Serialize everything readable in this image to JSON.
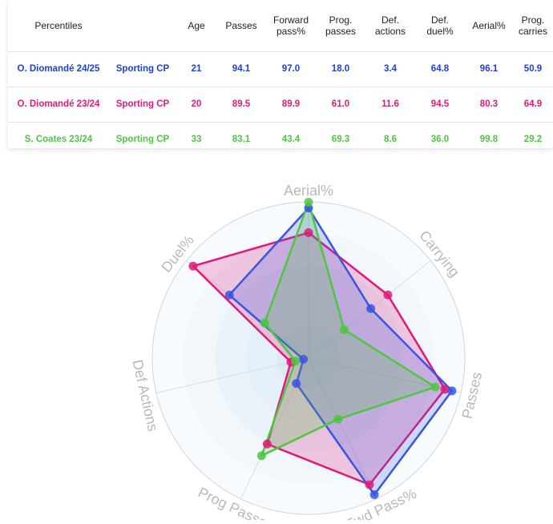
{
  "table": {
    "headers": [
      "Percentiles",
      "",
      "Age",
      "Passes",
      "Forward pass%",
      "Prog. passes",
      "Def. actions",
      "Def. duel%",
      "Aerial%",
      "Prog. carries"
    ],
    "rows": [
      {
        "player": "O. Diomandé 24/25",
        "team": "Sporting CP",
        "color": "#1f3fcf",
        "values": [
          "21",
          "94.1",
          "97.0",
          "18.0",
          "3.4",
          "64.8",
          "96.1",
          "50.9"
        ]
      },
      {
        "player": "O. Diomandé 23/24",
        "team": "Sporting CP",
        "color": "#e0197a",
        "values": [
          "20",
          "89.5",
          "89.9",
          "61.0",
          "11.6",
          "94.5",
          "80.3",
          "64.9"
        ]
      },
      {
        "player": "S. Coates 23/24",
        "team": "Sporting CP",
        "color": "#4ec63f",
        "values": [
          "33",
          "83.1",
          "43.4",
          "69.3",
          "8.6",
          "36.0",
          "99.8",
          "29.2"
        ]
      }
    ]
  },
  "chart_data": {
    "type": "radar",
    "axes": [
      "Aerial%",
      "Carrying",
      "Passes",
      "Fwd Pass%",
      "Prog Passes",
      "Def Actions",
      "Duel%"
    ],
    "range": [
      0,
      100
    ],
    "series": [
      {
        "name": "O. Diomandé 23/24",
        "color": "#e0197a",
        "values": [
          80.3,
          64.9,
          89.5,
          89.9,
          61.0,
          11.6,
          94.5
        ]
      },
      {
        "name": "O. Diomandé 24/25",
        "color": "#3a55e0",
        "values": [
          96.1,
          50.9,
          94.1,
          97.0,
          18.0,
          3.4,
          64.8
        ]
      },
      {
        "name": "S. Coates 23/24",
        "color": "#4ec63f",
        "values": [
          99.8,
          29.2,
          83.1,
          43.4,
          69.3,
          8.6,
          36.0
        ]
      }
    ]
  }
}
